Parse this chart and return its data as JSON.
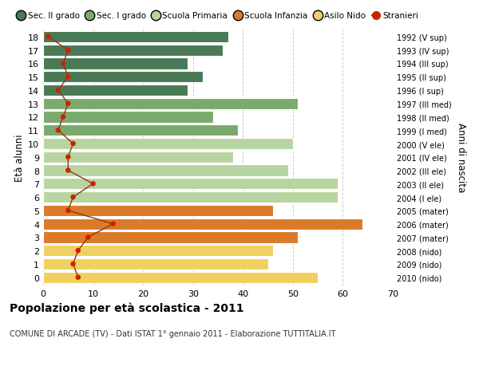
{
  "ages": [
    18,
    17,
    16,
    15,
    14,
    13,
    12,
    11,
    10,
    9,
    8,
    7,
    6,
    5,
    4,
    3,
    2,
    1,
    0
  ],
  "anni_nascita": [
    "1992 (V sup)",
    "1993 (IV sup)",
    "1994 (III sup)",
    "1995 (II sup)",
    "1996 (I sup)",
    "1997 (III med)",
    "1998 (II med)",
    "1999 (I med)",
    "2000 (V ele)",
    "2001 (IV ele)",
    "2002 (III ele)",
    "2003 (II ele)",
    "2004 (I ele)",
    "2005 (mater)",
    "2006 (mater)",
    "2007 (mater)",
    "2008 (nido)",
    "2009 (nido)",
    "2010 (nido)"
  ],
  "bar_values": [
    37,
    36,
    29,
    32,
    29,
    51,
    34,
    39,
    50,
    38,
    49,
    59,
    59,
    46,
    64,
    51,
    46,
    45,
    55
  ],
  "bar_colors": [
    "#4a7a55",
    "#4a7a55",
    "#4a7a55",
    "#4a7a55",
    "#4a7a55",
    "#7aaa6e",
    "#7aaa6e",
    "#7aaa6e",
    "#b8d4a0",
    "#b8d4a0",
    "#b8d4a0",
    "#b8d4a0",
    "#b8d4a0",
    "#d97b2a",
    "#d97b2a",
    "#d97b2a",
    "#f0d060",
    "#f0d060",
    "#f0d060"
  ],
  "stranieri_values": [
    1,
    5,
    4,
    5,
    3,
    5,
    4,
    3,
    6,
    5,
    5,
    10,
    6,
    5,
    14,
    9,
    7,
    6,
    7
  ],
  "color_sec2": "#4a7a55",
  "color_sec1": "#7aaa6e",
  "color_primaria": "#b8d4a0",
  "color_infanzia": "#d97b2a",
  "color_nido": "#f0d060",
  "color_stranieri": "#cc2200",
  "color_line_stranieri": "#993311",
  "title_bold": "Popolazione per età scolastica - 2011",
  "subtitle": "COMUNE DI ARCADE (TV) - Dati ISTAT 1° gennaio 2011 - Elaborazione TUTTITALIA.IT",
  "ylabel_left": "Età alunni",
  "ylabel_right": "Anni di nascita",
  "xlim": [
    0,
    70
  ],
  "xticks": [
    0,
    10,
    20,
    30,
    40,
    50,
    60,
    70
  ],
  "legend_labels": [
    "Sec. II grado",
    "Sec. I grado",
    "Scuola Primaria",
    "Scuola Infanzia",
    "Asilo Nido",
    "Stranieri"
  ],
  "bg_color": "#ffffff",
  "grid_color": "#cccccc",
  "bar_height": 0.85
}
